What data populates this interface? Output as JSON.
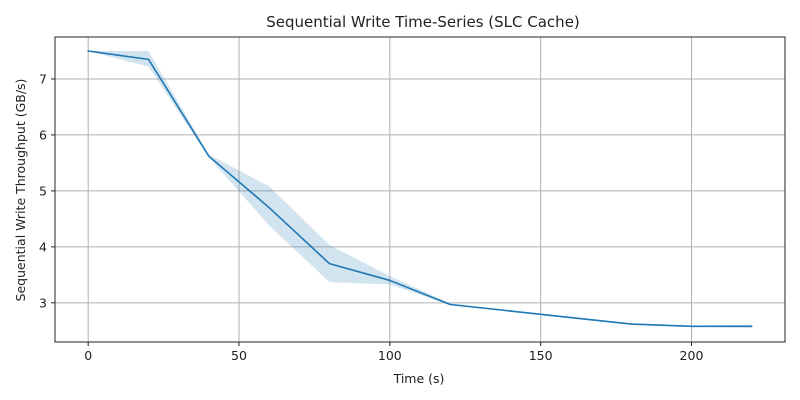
{
  "chart_data": {
    "type": "line",
    "title": "Sequential Write Time-Series (SLC Cache)",
    "xlabel": "Time (s)",
    "ylabel": "Sequential Write Throughput (GB/s)",
    "xlim": [
      -11,
      231
    ],
    "ylim": [
      2.3,
      7.75
    ],
    "x_ticks": [
      0,
      50,
      100,
      150,
      200
    ],
    "y_ticks": [
      3,
      4,
      5,
      6,
      7
    ],
    "grid": true,
    "colors": {
      "line": "#1f77b4",
      "band": "#1f77b4"
    },
    "series": [
      {
        "x": [
          0,
          20,
          40,
          60,
          80,
          100,
          120,
          180,
          200,
          220
        ],
        "y": [
          7.5,
          7.35,
          5.62,
          4.7,
          3.7,
          3.4,
          2.97,
          2.62,
          2.58,
          2.58
        ],
        "lower": [
          7.5,
          7.22,
          5.6,
          4.38,
          3.37,
          3.33,
          2.96,
          2.61,
          2.57,
          2.56
        ],
        "upper": [
          7.5,
          7.5,
          5.65,
          5.08,
          4.03,
          3.48,
          2.99,
          2.63,
          2.59,
          2.61
        ]
      }
    ]
  }
}
